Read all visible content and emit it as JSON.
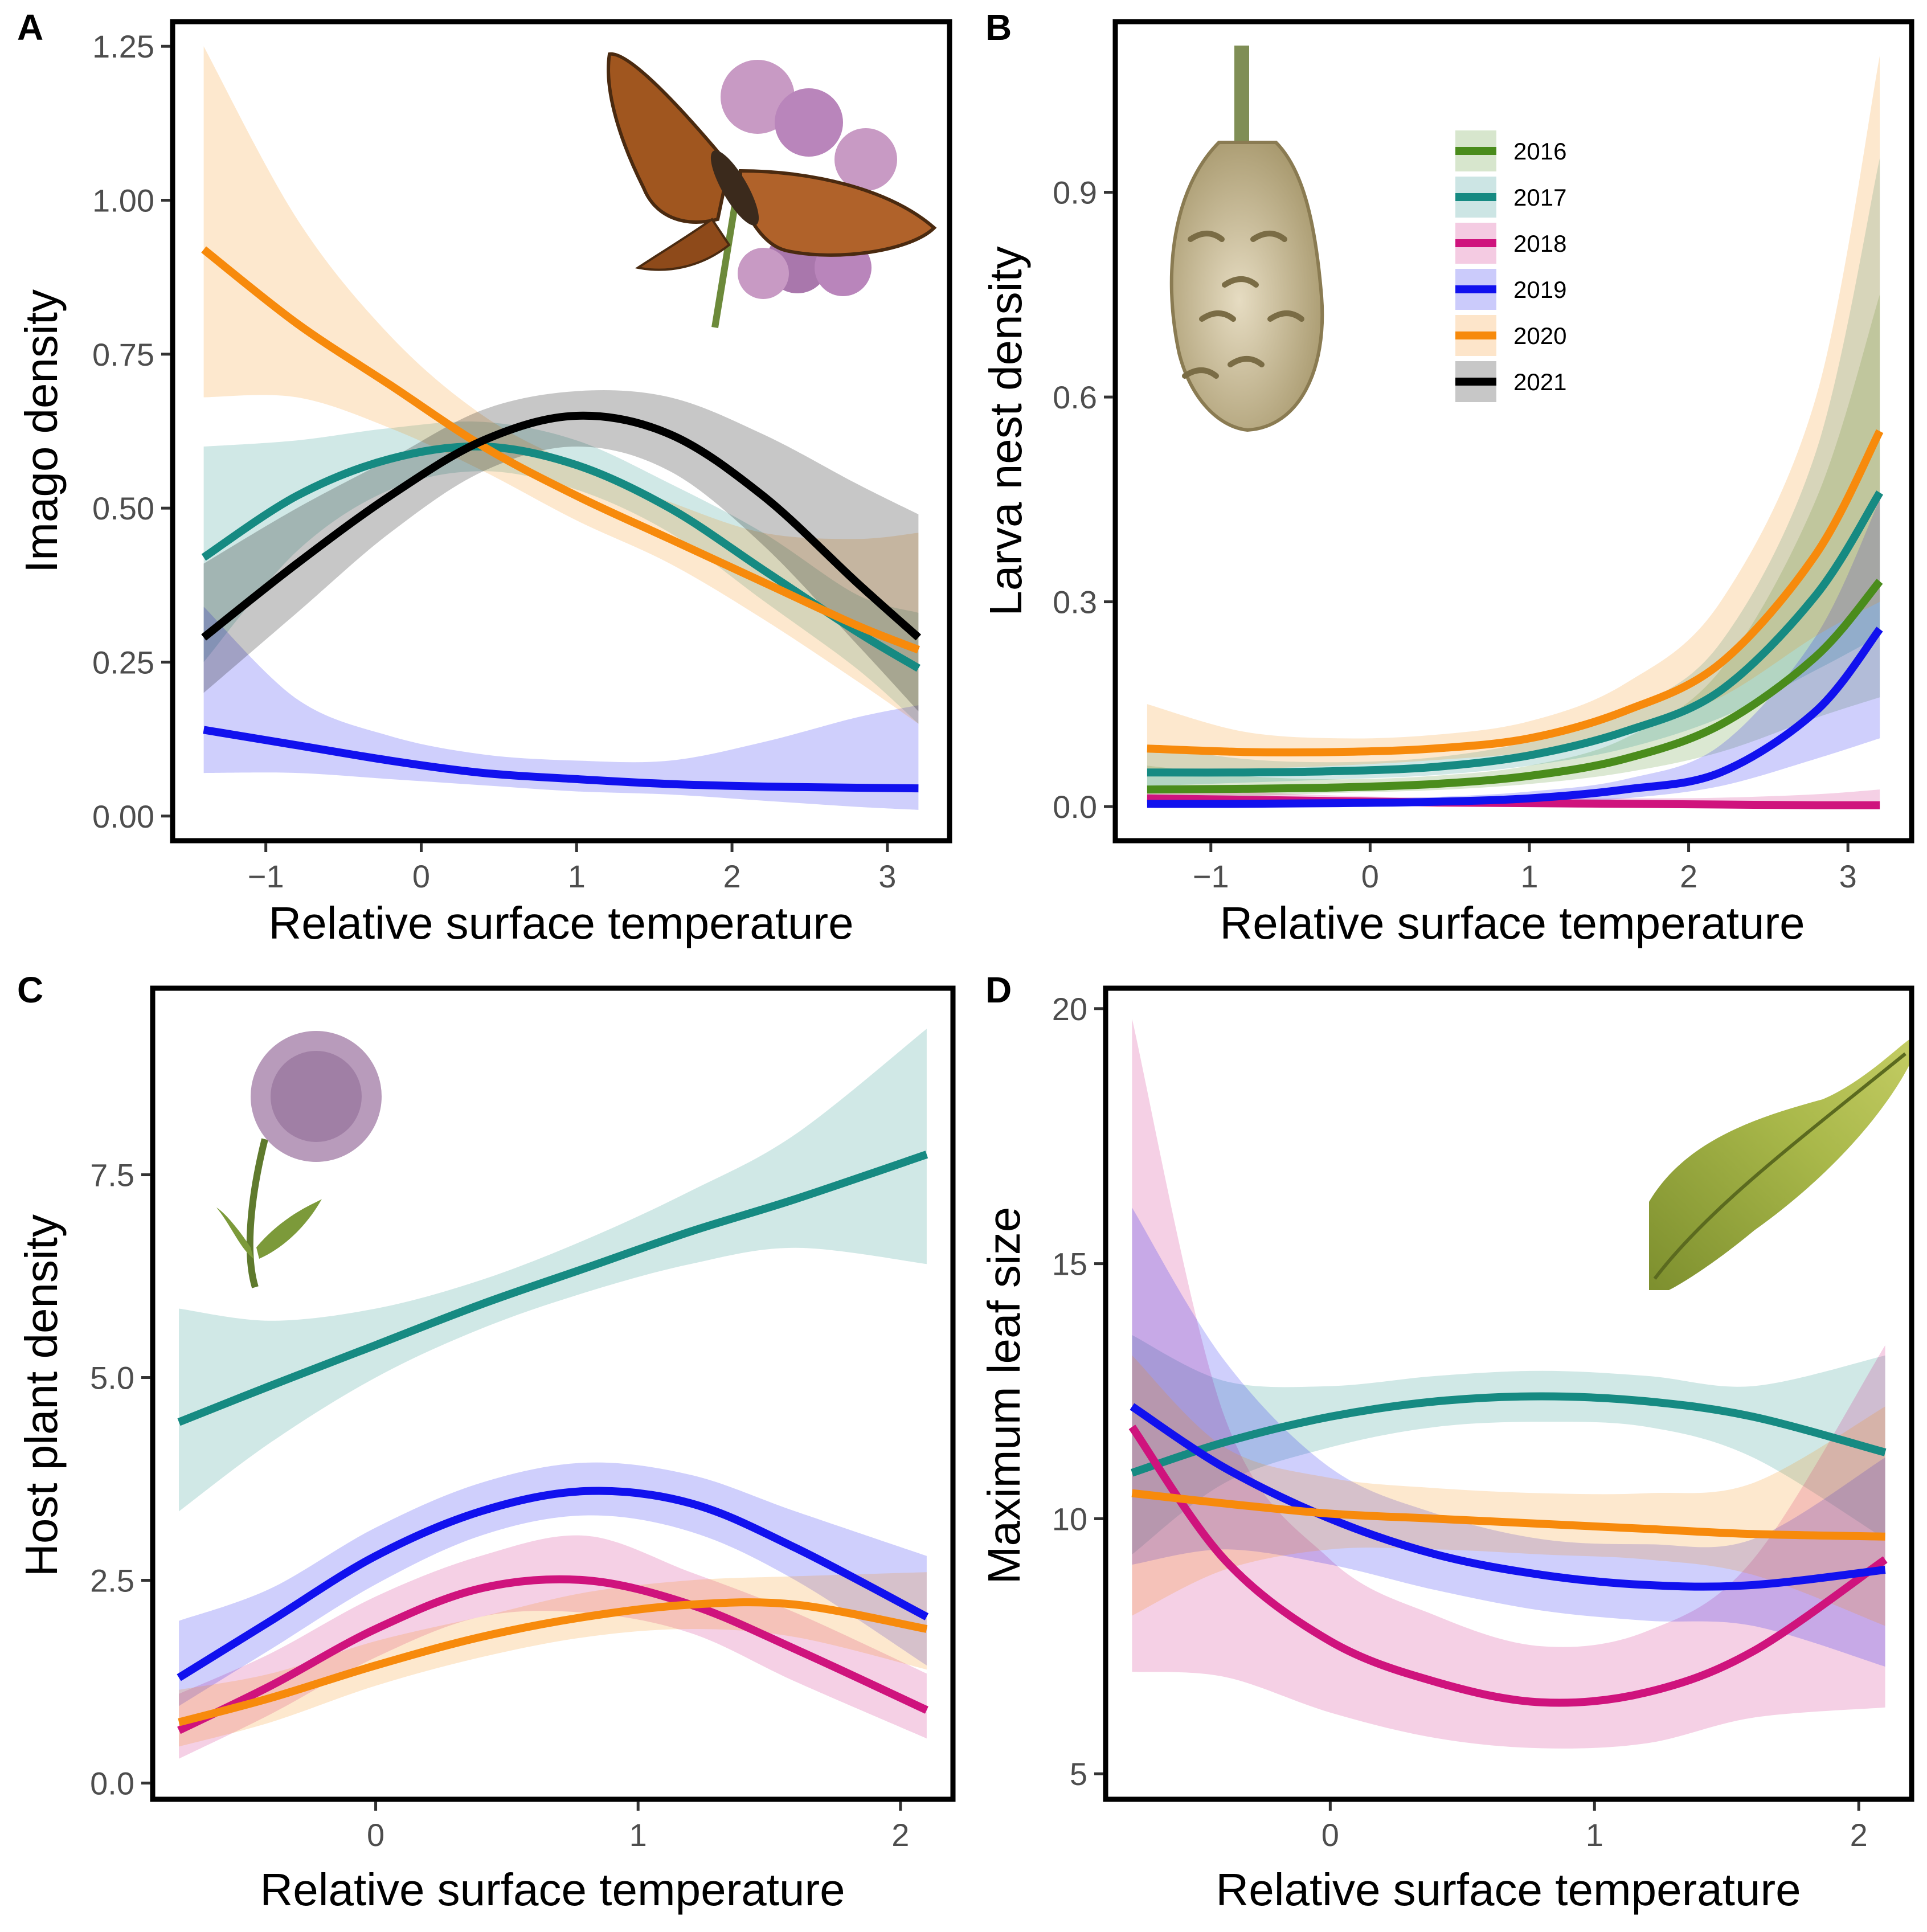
{
  "colors": {
    "2016": "#4a8c1c",
    "2017": "#168a82",
    "2018": "#cf137d",
    "2019": "#1111ee",
    "2020": "#f78a0c",
    "2021": "#000000"
  },
  "legend": {
    "placement": "top-right of panel B",
    "years": [
      "2016",
      "2017",
      "2018",
      "2019",
      "2020",
      "2021"
    ]
  },
  "illustrations": {
    "A": "butterfly-on-flowers",
    "B": "larval-web-nest",
    "C": "devils-bit-scabious-flower",
    "D": "host-plant-leaf"
  },
  "chart_data": [
    {
      "panel": "A",
      "type": "line",
      "xlabel": "Relative surface temperature",
      "ylabel": "Imago density",
      "xlim": [
        -1.6,
        3.4
      ],
      "ylim": [
        -0.04,
        1.29
      ],
      "xticks": [
        -1,
        0,
        1,
        2,
        3
      ],
      "xtick_labels": [
        "−1",
        "0",
        "1",
        "2",
        "3"
      ],
      "yticks": [
        0,
        0.25,
        0.5,
        0.75,
        1.0,
        1.25
      ],
      "ytick_labels": [
        "0.00",
        "0.25",
        "0.50",
        "0.75",
        "1.00",
        "1.25"
      ],
      "series": [
        {
          "name": "2017",
          "x": [
            -1.4,
            -0.8,
            -0.2,
            0.4,
            1.0,
            1.6,
            2.2,
            2.8,
            3.2
          ],
          "y": [
            0.42,
            0.52,
            0.58,
            0.6,
            0.57,
            0.5,
            0.4,
            0.3,
            0.24
          ],
          "lower": [
            0.25,
            0.43,
            0.53,
            0.56,
            0.53,
            0.46,
            0.35,
            0.24,
            0.15
          ],
          "upper": [
            0.6,
            0.61,
            0.63,
            0.64,
            0.61,
            0.54,
            0.46,
            0.36,
            0.33
          ]
        },
        {
          "name": "2019",
          "x": [
            -1.4,
            -0.8,
            -0.2,
            0.4,
            1.0,
            1.6,
            2.2,
            2.8,
            3.2
          ],
          "y": [
            0.14,
            0.115,
            0.09,
            0.07,
            0.06,
            0.052,
            0.048,
            0.046,
            0.045
          ],
          "lower": [
            0.07,
            0.07,
            0.06,
            0.05,
            0.04,
            0.035,
            0.025,
            0.015,
            0.01
          ],
          "upper": [
            0.34,
            0.19,
            0.13,
            0.1,
            0.09,
            0.09,
            0.12,
            0.16,
            0.18
          ]
        },
        {
          "name": "2020",
          "x": [
            -1.4,
            -0.8,
            -0.2,
            0.4,
            1.0,
            1.6,
            2.2,
            2.8,
            3.2
          ],
          "y": [
            0.92,
            0.8,
            0.7,
            0.6,
            0.52,
            0.45,
            0.38,
            0.31,
            0.27
          ],
          "lower": [
            0.68,
            0.68,
            0.63,
            0.56,
            0.48,
            0.41,
            0.32,
            0.22,
            0.15
          ],
          "upper": [
            1.25,
            0.97,
            0.78,
            0.65,
            0.57,
            0.51,
            0.46,
            0.45,
            0.46
          ]
        },
        {
          "name": "2021",
          "x": [
            -1.4,
            -0.8,
            -0.2,
            0.4,
            1.0,
            1.6,
            2.2,
            2.8,
            3.2
          ],
          "y": [
            0.29,
            0.41,
            0.52,
            0.61,
            0.65,
            0.62,
            0.52,
            0.38,
            0.29
          ],
          "lower": [
            0.2,
            0.33,
            0.46,
            0.56,
            0.6,
            0.56,
            0.44,
            0.28,
            0.17
          ],
          "upper": [
            0.41,
            0.5,
            0.58,
            0.66,
            0.69,
            0.68,
            0.62,
            0.54,
            0.49
          ]
        }
      ]
    },
    {
      "panel": "B",
      "type": "line",
      "xlabel": "Relative surface temperature",
      "ylabel": "Larva nest density",
      "xlim": [
        -1.6,
        3.4
      ],
      "ylim": [
        -0.05,
        1.15
      ],
      "xticks": [
        -1,
        0,
        1,
        2,
        3
      ],
      "xtick_labels": [
        "−1",
        "0",
        "1",
        "2",
        "3"
      ],
      "yticks": [
        0,
        0.3,
        0.6,
        0.9
      ],
      "ytick_labels": [
        "0.0",
        "0.3",
        "0.6",
        "0.9"
      ],
      "series": [
        {
          "name": "2016",
          "x": [
            -1.4,
            -0.8,
            -0.2,
            0.4,
            1.0,
            1.6,
            2.2,
            2.8,
            3.2
          ],
          "y": [
            0.025,
            0.026,
            0.028,
            0.033,
            0.045,
            0.07,
            0.12,
            0.22,
            0.33
          ],
          "lower": [
            0.01,
            0.015,
            0.02,
            0.024,
            0.033,
            0.05,
            0.08,
            0.13,
            0.16
          ],
          "upper": [
            0.06,
            0.045,
            0.04,
            0.045,
            0.06,
            0.1,
            0.2,
            0.45,
            0.75
          ]
        },
        {
          "name": "2017",
          "x": [
            -1.4,
            -0.8,
            -0.2,
            0.4,
            1.0,
            1.6,
            2.2,
            2.8,
            3.2
          ],
          "y": [
            0.05,
            0.05,
            0.052,
            0.058,
            0.075,
            0.11,
            0.17,
            0.31,
            0.46
          ],
          "lower": [
            0.03,
            0.035,
            0.04,
            0.046,
            0.06,
            0.085,
            0.13,
            0.2,
            0.25
          ],
          "upper": [
            0.09,
            0.07,
            0.065,
            0.072,
            0.095,
            0.14,
            0.24,
            0.52,
            0.95
          ]
        },
        {
          "name": "2018",
          "x": [
            -1.4,
            -0.8,
            -0.2,
            0.4,
            1.0,
            1.6,
            2.2,
            2.8,
            3.2
          ],
          "y": [
            0.012,
            0.01,
            0.008,
            0.006,
            0.005,
            0.004,
            0.003,
            0.002,
            0.002
          ],
          "lower": [
            0.002,
            0.002,
            0.001,
            0.001,
            0.0,
            0.0,
            0.0,
            0.0,
            0.0
          ],
          "upper": [
            0.03,
            0.022,
            0.016,
            0.013,
            0.012,
            0.012,
            0.013,
            0.018,
            0.025
          ]
        },
        {
          "name": "2019",
          "x": [
            -1.4,
            -0.8,
            -0.2,
            0.4,
            1.0,
            1.6,
            2.2,
            2.8,
            3.2
          ],
          "y": [
            0.004,
            0.004,
            0.005,
            0.007,
            0.012,
            0.025,
            0.05,
            0.14,
            0.26
          ],
          "lower": [
            0.0,
            0.0,
            0.001,
            0.002,
            0.005,
            0.012,
            0.03,
            0.07,
            0.1
          ],
          "upper": [
            0.01,
            0.01,
            0.011,
            0.014,
            0.022,
            0.04,
            0.09,
            0.25,
            0.45
          ]
        },
        {
          "name": "2020",
          "x": [
            -1.4,
            -0.8,
            -0.2,
            0.4,
            1.0,
            1.6,
            2.2,
            2.8,
            3.2
          ],
          "y": [
            0.085,
            0.08,
            0.08,
            0.085,
            0.1,
            0.14,
            0.21,
            0.37,
            0.55
          ],
          "lower": [
            0.05,
            0.055,
            0.06,
            0.068,
            0.08,
            0.11,
            0.16,
            0.25,
            0.3
          ],
          "upper": [
            0.15,
            0.11,
            0.1,
            0.105,
            0.125,
            0.18,
            0.3,
            0.6,
            1.1
          ]
        }
      ]
    },
    {
      "panel": "C",
      "type": "line",
      "xlabel": "Relative surface temperature",
      "ylabel": "Host plant density",
      "xlim": [
        -0.85,
        2.2
      ],
      "ylim": [
        -0.2,
        9.8
      ],
      "xticks": [
        0,
        1,
        2
      ],
      "xtick_labels": [
        "0",
        "1",
        "2"
      ],
      "yticks": [
        0,
        2.5,
        5,
        7.5
      ],
      "ytick_labels": [
        "0.0",
        "2.5",
        "5.0",
        "7.5"
      ],
      "series": [
        {
          "name": "2017",
          "x": [
            -0.75,
            -0.4,
            0.0,
            0.4,
            0.8,
            1.2,
            1.6,
            2.1
          ],
          "y": [
            4.45,
            4.9,
            5.4,
            5.9,
            6.35,
            6.8,
            7.2,
            7.75
          ],
          "lower": [
            3.35,
            4.2,
            5.0,
            5.6,
            6.05,
            6.4,
            6.6,
            6.4
          ],
          "upper": [
            5.85,
            5.7,
            5.85,
            6.2,
            6.7,
            7.3,
            8.0,
            9.3
          ]
        },
        {
          "name": "2018",
          "x": [
            -0.75,
            -0.4,
            0.0,
            0.4,
            0.8,
            1.2,
            1.6,
            2.1
          ],
          "y": [
            0.65,
            1.2,
            1.9,
            2.4,
            2.5,
            2.2,
            1.65,
            0.9
          ],
          "lower": [
            0.3,
            0.85,
            1.55,
            2.05,
            2.1,
            1.85,
            1.25,
            0.55
          ],
          "upper": [
            1.1,
            1.6,
            2.3,
            2.8,
            3.05,
            2.6,
            2.1,
            1.35
          ]
        },
        {
          "name": "2019",
          "x": [
            -0.75,
            -0.4,
            0.0,
            0.4,
            0.8,
            1.2,
            1.6,
            2.1
          ],
          "y": [
            1.3,
            2.0,
            2.8,
            3.35,
            3.6,
            3.45,
            2.9,
            2.05
          ],
          "lower": [
            0.95,
            1.65,
            2.45,
            3.05,
            3.3,
            3.1,
            2.5,
            1.45
          ],
          "upper": [
            2.0,
            2.4,
            3.15,
            3.7,
            3.95,
            3.8,
            3.35,
            2.8
          ]
        },
        {
          "name": "2020",
          "x": [
            -0.75,
            -0.4,
            0.0,
            0.4,
            0.8,
            1.2,
            1.6,
            2.1
          ],
          "y": [
            0.75,
            1.05,
            1.45,
            1.8,
            2.05,
            2.2,
            2.2,
            1.9
          ],
          "lower": [
            0.45,
            0.75,
            1.2,
            1.55,
            1.8,
            1.9,
            1.8,
            1.4
          ],
          "upper": [
            1.15,
            1.35,
            1.75,
            2.05,
            2.35,
            2.5,
            2.55,
            2.6
          ]
        }
      ]
    },
    {
      "panel": "D",
      "type": "line",
      "xlabel": "Relative surface temperature",
      "ylabel": "Maximum leaf size",
      "xlim": [
        -0.85,
        2.2
      ],
      "ylim": [
        4.5,
        20.4
      ],
      "xticks": [
        0,
        1,
        2
      ],
      "xtick_labels": [
        "0",
        "1",
        "2"
      ],
      "yticks": [
        5,
        10,
        15,
        20
      ],
      "ytick_labels": [
        "5",
        "10",
        "15",
        "20"
      ],
      "series": [
        {
          "name": "2017",
          "x": [
            -0.75,
            -0.4,
            0.0,
            0.4,
            0.8,
            1.2,
            1.6,
            2.1
          ],
          "y": [
            10.9,
            11.5,
            12.0,
            12.3,
            12.4,
            12.3,
            12.0,
            11.3
          ],
          "lower": [
            9.3,
            10.7,
            11.4,
            11.8,
            11.9,
            11.8,
            11.2,
            9.6
          ],
          "upper": [
            13.6,
            12.7,
            12.6,
            12.8,
            12.9,
            12.8,
            12.6,
            13.2
          ]
        },
        {
          "name": "2018",
          "x": [
            -0.75,
            -0.4,
            0.0,
            0.4,
            0.8,
            1.2,
            1.6,
            2.1
          ],
          "y": [
            11.8,
            9.2,
            7.6,
            6.8,
            6.4,
            6.6,
            7.4,
            9.2
          ],
          "lower": [
            7.0,
            6.9,
            6.2,
            5.7,
            5.5,
            5.6,
            6.1,
            6.3
          ],
          "upper": [
            19.8,
            12.0,
            9.2,
            8.1,
            7.5,
            7.8,
            9.2,
            13.4
          ]
        },
        {
          "name": "2019",
          "x": [
            -0.75,
            -0.4,
            0.0,
            0.4,
            0.8,
            1.2,
            1.6,
            2.1
          ],
          "y": [
            12.2,
            11.0,
            10.0,
            9.3,
            8.9,
            8.7,
            8.7,
            9.0
          ],
          "lower": [
            9.1,
            9.4,
            9.1,
            8.6,
            8.2,
            8.0,
            7.9,
            7.1
          ],
          "upper": [
            16.1,
            13.1,
            11.0,
            10.1,
            9.6,
            9.5,
            9.6,
            11.2
          ]
        },
        {
          "name": "2020",
          "x": [
            -0.75,
            -0.4,
            0.0,
            0.4,
            0.8,
            1.2,
            1.6,
            2.1
          ],
          "y": [
            10.5,
            10.3,
            10.1,
            10.0,
            9.9,
            9.8,
            9.7,
            9.65
          ],
          "lower": [
            8.1,
            9.0,
            9.4,
            9.4,
            9.3,
            9.2,
            8.9,
            7.9
          ],
          "upper": [
            13.2,
            11.4,
            10.8,
            10.6,
            10.5,
            10.5,
            10.7,
            12.2
          ]
        }
      ]
    }
  ]
}
